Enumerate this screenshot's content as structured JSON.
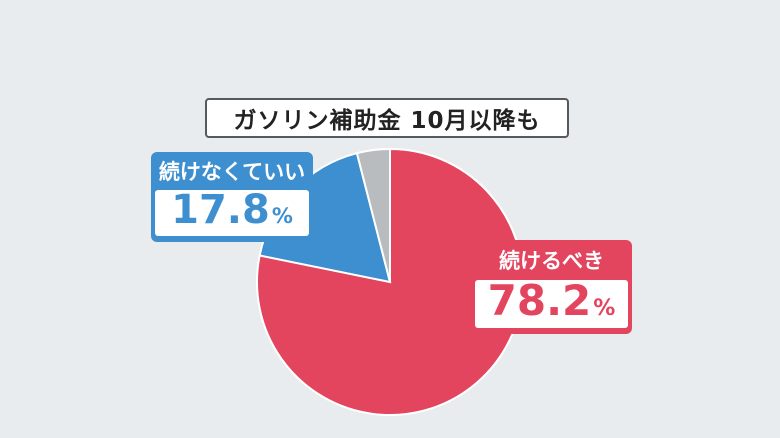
{
  "chart_data": {
    "type": "pie",
    "title": "ガソリン補助金  10月以降も",
    "slices": [
      {
        "label": "続けるべき",
        "value": 78.2,
        "color": "#e3455f"
      },
      {
        "label": "続けなくていい",
        "value": 17.8,
        "color": "#3d8fcf"
      },
      {
        "label": "",
        "value": 4.0,
        "color": "#b9bcbf"
      }
    ],
    "value_labels": {
      "red": {
        "number": "78.2",
        "unit": "%"
      },
      "blue": {
        "number": "17.8",
        "unit": "%"
      }
    }
  }
}
